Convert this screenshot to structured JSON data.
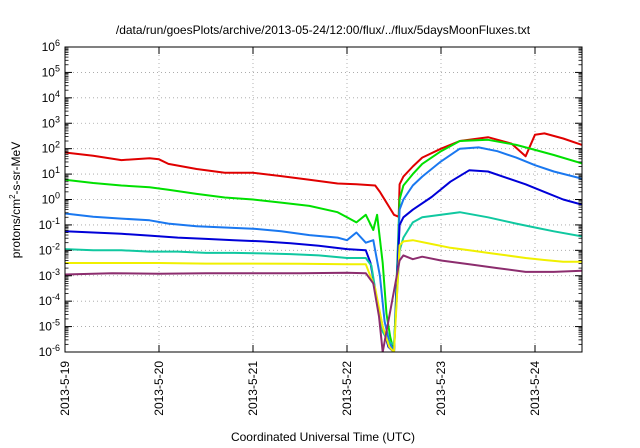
{
  "chart_data": {
    "type": "line",
    "title": "/data/run/goesPlots/archive/2013-05-24/12:00/flux/../flux/5daysMoonFluxes.txt",
    "xlabel": "Coordinated Universal Time (UTC)",
    "ylabel": {
      "base": "protons/cm",
      "sup": "2",
      "rest": "-s-sr-MeV"
    },
    "x_unit": "days",
    "xlim": [
      0,
      5.5
    ],
    "x_ticks": [
      {
        "value": 0,
        "label": "2013-5-19"
      },
      {
        "value": 1,
        "label": "2013-5-20"
      },
      {
        "value": 2,
        "label": "2013-5-21"
      },
      {
        "value": 3,
        "label": "2013-5-22"
      },
      {
        "value": 4,
        "label": "2013-5-23"
      },
      {
        "value": 5,
        "label": "2013-5-24"
      }
    ],
    "y_scale": "log",
    "ylim_exp": [
      -6,
      6
    ],
    "y_ticks": [
      {
        "exp": -6,
        "base": "10",
        "sup": "-6"
      },
      {
        "exp": -5,
        "base": "10",
        "sup": "-5"
      },
      {
        "exp": -4,
        "base": "10",
        "sup": "-4"
      },
      {
        "exp": -3,
        "base": "10",
        "sup": "-3"
      },
      {
        "exp": -2,
        "base": "10",
        "sup": "-2"
      },
      {
        "exp": -1,
        "base": "10",
        "sup": "-1"
      },
      {
        "exp": 0,
        "base": "10",
        "sup": "0"
      },
      {
        "exp": 1,
        "base": "10",
        "sup": "1"
      },
      {
        "exp": 2,
        "base": "10",
        "sup": "2"
      },
      {
        "exp": 3,
        "base": "10",
        "sup": "3"
      },
      {
        "exp": 4,
        "base": "10",
        "sup": "4"
      },
      {
        "exp": 5,
        "base": "10",
        "sup": "5"
      },
      {
        "exp": 6,
        "base": "10",
        "sup": "6"
      }
    ],
    "grid": true,
    "legend": "none",
    "series": [
      {
        "color": "#e00000",
        "log10_y": [
          [
            0.0,
            1.85
          ],
          [
            0.3,
            1.72
          ],
          [
            0.6,
            1.55
          ],
          [
            0.9,
            1.62
          ],
          [
            1.0,
            1.58
          ],
          [
            1.1,
            1.4
          ],
          [
            1.4,
            1.2
          ],
          [
            1.7,
            1.05
          ],
          [
            2.0,
            1.05
          ],
          [
            2.3,
            0.92
          ],
          [
            2.6,
            0.78
          ],
          [
            2.9,
            0.63
          ],
          [
            3.1,
            0.6
          ],
          [
            3.3,
            0.55
          ],
          [
            3.35,
            0.3
          ],
          [
            3.45,
            -0.3
          ],
          [
            3.5,
            -0.6
          ],
          [
            3.55,
            -0.68
          ],
          [
            3.56,
            0.6
          ],
          [
            3.6,
            0.9
          ],
          [
            3.7,
            1.3
          ],
          [
            3.8,
            1.65
          ],
          [
            4.0,
            2.0
          ],
          [
            4.2,
            2.3
          ],
          [
            4.5,
            2.45
          ],
          [
            4.75,
            2.2
          ],
          [
            4.9,
            1.7
          ],
          [
            5.0,
            2.55
          ],
          [
            5.1,
            2.6
          ],
          [
            5.3,
            2.4
          ],
          [
            5.5,
            2.15
          ]
        ]
      },
      {
        "color": "#00e000",
        "log10_y": [
          [
            0.0,
            0.78
          ],
          [
            0.3,
            0.65
          ],
          [
            0.6,
            0.55
          ],
          [
            0.9,
            0.48
          ],
          [
            1.1,
            0.38
          ],
          [
            1.4,
            0.22
          ],
          [
            1.7,
            0.08
          ],
          [
            2.0,
            0.0
          ],
          [
            2.3,
            -0.12
          ],
          [
            2.6,
            -0.25
          ],
          [
            2.9,
            -0.5
          ],
          [
            3.0,
            -0.7
          ],
          [
            3.1,
            -0.9
          ],
          [
            3.2,
            -0.6
          ],
          [
            3.28,
            -1.2
          ],
          [
            3.32,
            -0.6
          ],
          [
            3.38,
            -2.5
          ],
          [
            3.42,
            -4.5
          ],
          [
            3.46,
            -5.4
          ],
          [
            3.5,
            -6.0
          ],
          [
            3.56,
            0.0
          ],
          [
            3.6,
            0.55
          ],
          [
            3.7,
            1.0
          ],
          [
            3.8,
            1.4
          ],
          [
            4.0,
            1.9
          ],
          [
            4.2,
            2.3
          ],
          [
            4.5,
            2.35
          ],
          [
            4.8,
            2.15
          ],
          [
            5.0,
            1.95
          ],
          [
            5.2,
            1.75
          ],
          [
            5.5,
            1.42
          ]
        ]
      },
      {
        "color": "#1a78f0",
        "log10_y": [
          [
            0.0,
            -0.55
          ],
          [
            0.3,
            -0.68
          ],
          [
            0.6,
            -0.75
          ],
          [
            0.9,
            -0.82
          ],
          [
            1.1,
            -0.95
          ],
          [
            1.4,
            -1.05
          ],
          [
            1.7,
            -1.1
          ],
          [
            2.0,
            -1.15
          ],
          [
            2.3,
            -1.25
          ],
          [
            2.6,
            -1.4
          ],
          [
            2.9,
            -1.5
          ],
          [
            3.0,
            -1.6
          ],
          [
            3.1,
            -1.3
          ],
          [
            3.2,
            -1.7
          ],
          [
            3.28,
            -1.6
          ],
          [
            3.35,
            -3.0
          ],
          [
            3.4,
            -4.8
          ],
          [
            3.45,
            -5.6
          ],
          [
            3.5,
            -6.0
          ],
          [
            3.56,
            -0.4
          ],
          [
            3.6,
            0.0
          ],
          [
            3.7,
            0.55
          ],
          [
            3.8,
            0.9
          ],
          [
            4.0,
            1.5
          ],
          [
            4.2,
            2.0
          ],
          [
            4.4,
            2.05
          ],
          [
            4.6,
            1.9
          ],
          [
            4.8,
            1.65
          ],
          [
            5.0,
            1.35
          ],
          [
            5.2,
            1.1
          ],
          [
            5.5,
            0.82
          ]
        ]
      },
      {
        "color": "#0000d8",
        "log10_y": [
          [
            0.0,
            -1.25
          ],
          [
            0.3,
            -1.3
          ],
          [
            0.6,
            -1.35
          ],
          [
            0.9,
            -1.42
          ],
          [
            1.2,
            -1.5
          ],
          [
            1.5,
            -1.55
          ],
          [
            1.8,
            -1.6
          ],
          [
            2.1,
            -1.65
          ],
          [
            2.4,
            -1.72
          ],
          [
            2.7,
            -1.82
          ],
          [
            3.0,
            -1.95
          ],
          [
            3.2,
            -2.0
          ],
          [
            3.25,
            -2.5
          ],
          [
            3.32,
            -4.0
          ],
          [
            3.38,
            -5.0
          ],
          [
            3.44,
            -5.8
          ],
          [
            3.5,
            -6.0
          ],
          [
            3.56,
            -1.0
          ],
          [
            3.6,
            -0.7
          ],
          [
            3.7,
            -0.4
          ],
          [
            3.9,
            0.1
          ],
          [
            4.1,
            0.7
          ],
          [
            4.3,
            1.15
          ],
          [
            4.5,
            1.1
          ],
          [
            4.7,
            0.85
          ],
          [
            4.9,
            0.6
          ],
          [
            5.1,
            0.3
          ],
          [
            5.3,
            0.0
          ],
          [
            5.5,
            -0.2
          ]
        ]
      },
      {
        "color": "#10c8a0",
        "log10_y": [
          [
            0.0,
            -1.95
          ],
          [
            0.3,
            -2.0
          ],
          [
            0.6,
            -2.0
          ],
          [
            0.9,
            -2.05
          ],
          [
            1.2,
            -2.05
          ],
          [
            1.5,
            -2.1
          ],
          [
            1.8,
            -2.1
          ],
          [
            2.1,
            -2.12
          ],
          [
            2.4,
            -2.15
          ],
          [
            2.7,
            -2.2
          ],
          [
            3.0,
            -2.3
          ],
          [
            3.2,
            -2.3
          ],
          [
            3.26,
            -2.6
          ],
          [
            3.32,
            -4.0
          ],
          [
            3.38,
            -5.2
          ],
          [
            3.44,
            -5.6
          ],
          [
            3.5,
            -5.7
          ],
          [
            3.56,
            -2.0
          ],
          [
            3.6,
            -1.5
          ],
          [
            3.7,
            -0.9
          ],
          [
            3.8,
            -0.7
          ],
          [
            4.0,
            -0.6
          ],
          [
            4.2,
            -0.5
          ],
          [
            4.5,
            -0.7
          ],
          [
            4.8,
            -0.95
          ],
          [
            5.0,
            -1.1
          ],
          [
            5.2,
            -1.25
          ],
          [
            5.5,
            -1.45
          ]
        ]
      },
      {
        "color": "#f0f000",
        "log10_y": [
          [
            0.0,
            -2.5
          ],
          [
            0.5,
            -2.5
          ],
          [
            1.0,
            -2.5
          ],
          [
            1.5,
            -2.52
          ],
          [
            2.0,
            -2.52
          ],
          [
            2.5,
            -2.53
          ],
          [
            3.0,
            -2.55
          ],
          [
            3.2,
            -2.55
          ],
          [
            3.3,
            -3.5
          ],
          [
            3.38,
            -5.0
          ],
          [
            3.45,
            -5.8
          ],
          [
            3.5,
            -6.0
          ],
          [
            3.56,
            -1.8
          ],
          [
            3.6,
            -1.65
          ],
          [
            3.7,
            -1.6
          ],
          [
            3.9,
            -1.75
          ],
          [
            4.1,
            -1.9
          ],
          [
            4.3,
            -2.0
          ],
          [
            4.5,
            -2.1
          ],
          [
            4.7,
            -2.2
          ],
          [
            4.9,
            -2.3
          ],
          [
            5.1,
            -2.38
          ],
          [
            5.3,
            -2.45
          ],
          [
            5.5,
            -2.45
          ]
        ]
      },
      {
        "color": "#8c2d6e",
        "log10_y": [
          [
            0.0,
            -2.95
          ],
          [
            0.5,
            -2.9
          ],
          [
            1.0,
            -2.92
          ],
          [
            1.5,
            -2.9
          ],
          [
            2.0,
            -2.9
          ],
          [
            2.5,
            -2.9
          ],
          [
            3.0,
            -2.88
          ],
          [
            3.2,
            -2.9
          ],
          [
            3.28,
            -3.3
          ],
          [
            3.34,
            -4.6
          ],
          [
            3.38,
            -6.0
          ],
          [
            3.56,
            -2.4
          ],
          [
            3.6,
            -2.2
          ],
          [
            3.7,
            -2.35
          ],
          [
            3.8,
            -2.25
          ],
          [
            4.0,
            -2.4
          ],
          [
            4.3,
            -2.55
          ],
          [
            4.6,
            -2.7
          ],
          [
            4.9,
            -2.85
          ],
          [
            5.2,
            -2.85
          ],
          [
            5.5,
            -2.8
          ]
        ]
      }
    ]
  }
}
